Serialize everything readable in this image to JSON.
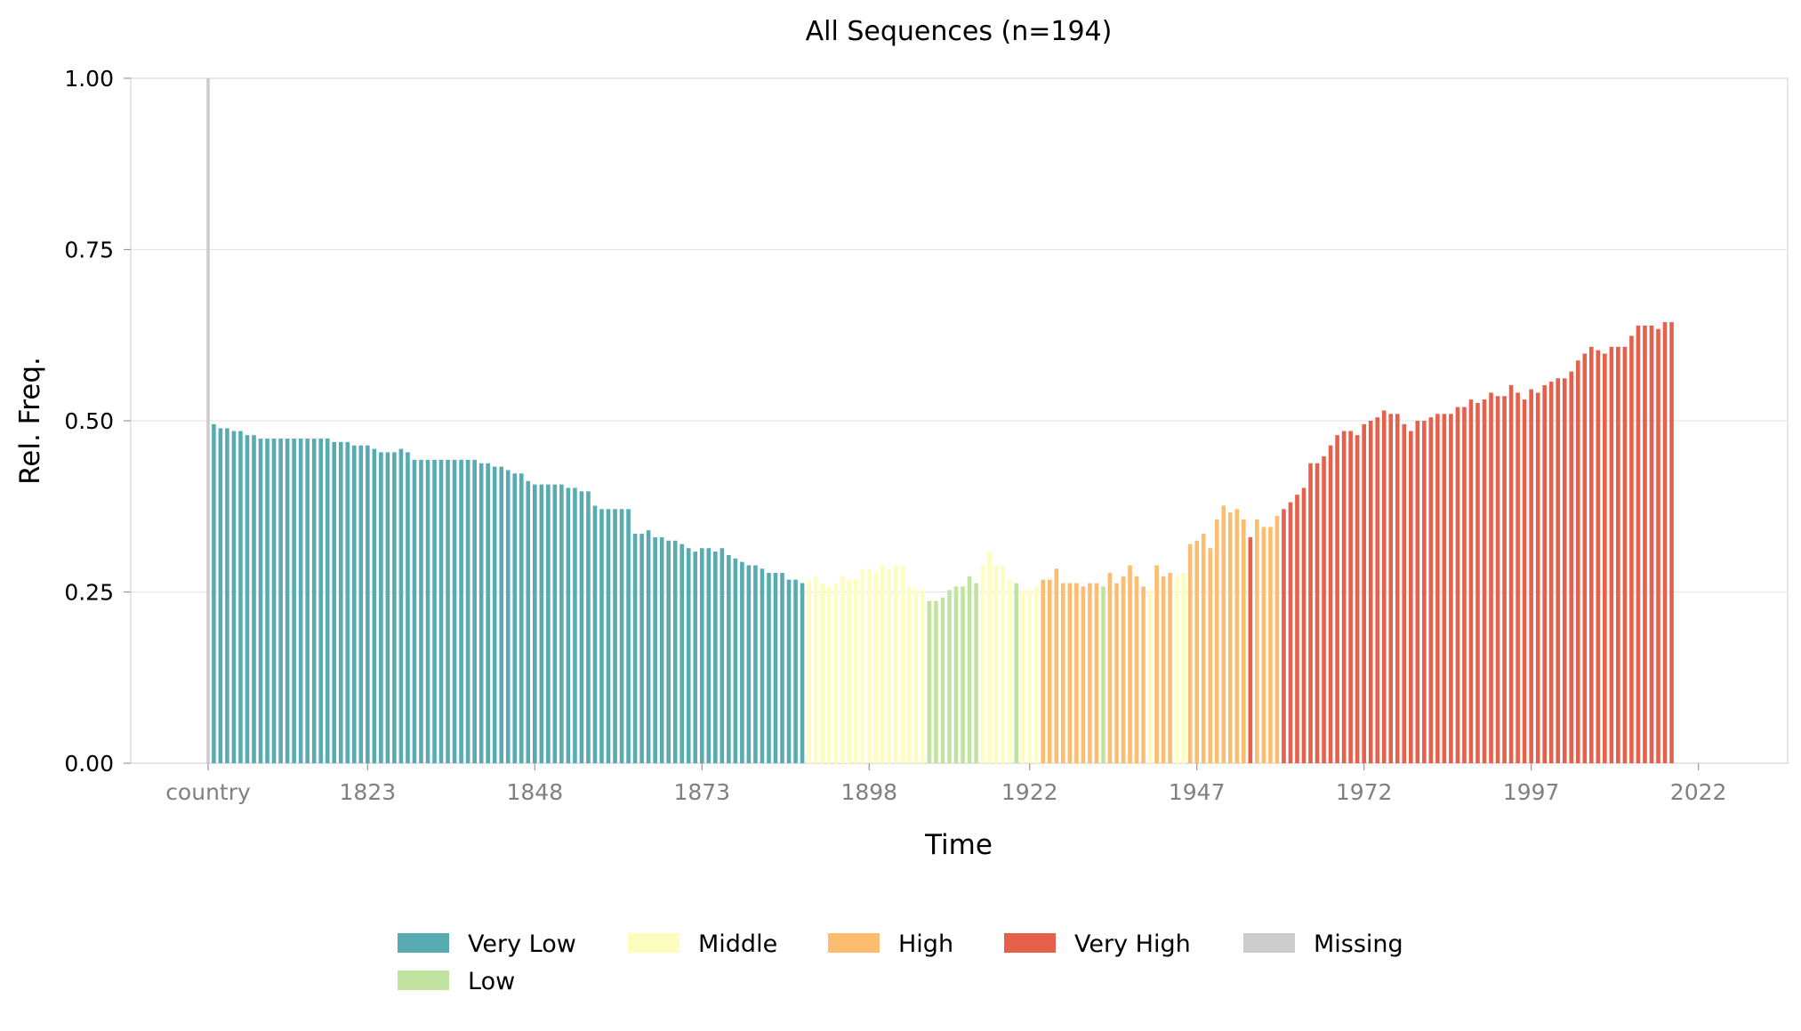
{
  "chart_data": {
    "type": "bar",
    "title": "All Sequences (n=194)",
    "xlabel": "Time",
    "ylabel": "Rel. Freq.",
    "ylim": [
      0,
      1
    ],
    "yticks": [
      "0.00",
      "0.25",
      "0.50",
      "0.75",
      "1.00"
    ],
    "yticks_values": [
      0,
      0.25,
      0.5,
      0.75,
      1.0
    ],
    "xticks": [
      "country",
      "1823",
      "1848",
      "1873",
      "1898",
      "1922",
      "1947",
      "1972",
      "1997",
      "2022"
    ],
    "grid": "horizontal",
    "legend_position": "bottom",
    "colors": {
      "Very Low": "#58abb0",
      "Low": "#c0e4a0",
      "Middle": "#fdfdbf",
      "High": "#fdbd70",
      "Very High": "#e6604c",
      "Missing": "#cccccc"
    },
    "legend": [
      "Very Low",
      "Middle",
      "High",
      "Very High",
      "Missing",
      "Low"
    ],
    "series": [
      {
        "name": "Missing",
        "x": [
          "country"
        ],
        "values": [
          1.0
        ]
      },
      {
        "name": "Very Low",
        "x_start": 1800,
        "values": [
          0.495,
          0.489,
          0.489,
          0.485,
          0.485,
          0.479,
          0.479,
          0.474,
          0.474,
          0.474,
          0.474,
          0.474,
          0.474,
          0.474,
          0.474,
          0.474,
          0.474,
          0.474,
          0.469,
          0.469,
          0.469,
          0.464,
          0.464,
          0.464,
          0.459,
          0.454,
          0.454,
          0.454,
          0.459,
          0.454,
          0.443,
          0.443,
          0.443,
          0.443,
          0.443,
          0.443,
          0.443,
          0.443,
          0.443,
          0.443,
          0.438,
          0.438,
          0.433,
          0.433,
          0.428,
          0.423,
          0.423,
          0.412,
          0.407,
          0.407,
          0.407,
          0.407,
          0.407,
          0.402,
          0.402,
          0.397,
          0.397,
          0.376,
          0.371,
          0.371,
          0.371,
          0.371,
          0.371,
          0.335,
          0.335,
          0.34,
          0.33,
          0.33,
          0.325,
          0.325,
          0.32,
          0.314,
          0.309,
          0.314,
          0.314,
          0.309,
          0.314,
          0.304,
          0.299,
          0.294,
          0.289,
          0.289,
          0.284,
          0.278,
          0.278,
          0.278,
          0.268,
          0.268,
          0.263
        ]
      },
      {
        "name": "Middle",
        "x_start": 1889,
        "values": [
          0.268,
          0.273,
          0.263,
          0.258,
          0.263,
          0.273,
          0.268,
          0.268,
          0.284,
          0.284,
          0.278,
          0.289,
          0.284,
          0.289,
          0.289,
          0.258,
          0.253,
          0.253
        ]
      },
      {
        "name": "Low",
        "x_start": 1907,
        "values": [
          0.237,
          0.237,
          0.242,
          0.253,
          0.258,
          0.258,
          0.273,
          0.263
        ]
      },
      {
        "name": "Middle",
        "x_start": 1915,
        "values": [
          0.289,
          0.309,
          0.289,
          0.289,
          0.268
        ]
      },
      {
        "name": "Low",
        "x_start": 1920,
        "values": [
          0.263
        ]
      },
      {
        "name": "Middle",
        "x_start": 1921,
        "values": [
          0.253,
          0.253,
          0.258
        ]
      },
      {
        "name": "High",
        "x_start": 1924,
        "values": [
          0.268,
          0.268,
          0.284,
          0.263,
          0.263,
          0.263,
          0.258,
          0.263,
          0.263
        ]
      },
      {
        "name": "Low",
        "x_start": 1933,
        "values": [
          0.258
        ]
      },
      {
        "name": "High",
        "x_start": 1934,
        "values": [
          0.278,
          0.263,
          0.273,
          0.289,
          0.273,
          0.258
        ]
      },
      {
        "name": "Middle",
        "x_start": 1940,
        "values": [
          0.253
        ]
      },
      {
        "name": "High",
        "x_start": 1941,
        "values": [
          0.289,
          0.273,
          0.278
        ]
      },
      {
        "name": "Middle",
        "x_start": 1944,
        "values": [
          0.273,
          0.278
        ]
      },
      {
        "name": "High",
        "x_start": 1946,
        "values": [
          0.32,
          0.325,
          0.335,
          0.314,
          0.356,
          0.376,
          0.366,
          0.371,
          0.356
        ]
      },
      {
        "name": "Very High",
        "x_start": 1955,
        "values": [
          0.33
        ]
      },
      {
        "name": "High",
        "x_start": 1956,
        "values": [
          0.356,
          0.345,
          0.345,
          0.361
        ]
      },
      {
        "name": "Very High",
        "x_start": 1960,
        "values": [
          0.371,
          0.381,
          0.392,
          0.402,
          0.438,
          0.438,
          0.448,
          0.464,
          0.479,
          0.485,
          0.485,
          0.479,
          0.495,
          0.5,
          0.505,
          0.515,
          0.51,
          0.51,
          0.495,
          0.485,
          0.5,
          0.5,
          0.505,
          0.51,
          0.51,
          0.51,
          0.52,
          0.52,
          0.531,
          0.526,
          0.531,
          0.541,
          0.536,
          0.536,
          0.552,
          0.541,
          0.531,
          0.546,
          0.541,
          0.552,
          0.557,
          0.562,
          0.562,
          0.572,
          0.588,
          0.598,
          0.608,
          0.603,
          0.598,
          0.608,
          0.608,
          0.608,
          0.624,
          0.639,
          0.639,
          0.639,
          0.634,
          0.644,
          0.644
        ]
      }
    ]
  }
}
